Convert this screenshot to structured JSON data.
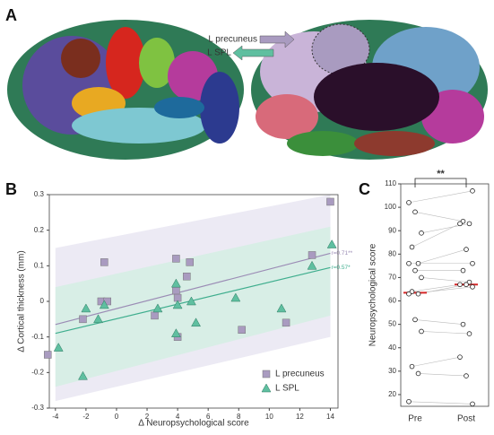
{
  "panel_labels": [
    "A",
    "B",
    "C"
  ],
  "brain_labels": [
    "L precuneus",
    "L SPL"
  ],
  "chart_data": [
    {
      "type": "scatter",
      "xlabel": "Δ Neuropsychological score",
      "ylabel": "Δ Cortical thickness (mm)",
      "xlim": [
        -4.4,
        14.5
      ],
      "ylim": [
        -0.3,
        0.3
      ],
      "xticks": [
        -4,
        -2,
        0,
        2,
        4,
        6,
        8,
        10,
        12,
        14
      ],
      "yticks": [
        -0.3,
        -0.2,
        -0.1,
        0,
        0.1,
        0.2,
        0.3
      ],
      "legend": "bottom-right",
      "series": [
        {
          "name": "L precuneus",
          "color": "#a99bc0",
          "marker": "square",
          "x": [
            -4.5,
            -2.2,
            -1,
            -0.8,
            -0.6,
            2.5,
            3.9,
            3.9,
            4,
            4,
            4.6,
            4.8,
            8.2,
            11.1,
            12.8,
            14
          ],
          "values": [
            -0.15,
            -0.05,
            0,
            0.11,
            0,
            -0.04,
            0.12,
            0.03,
            0.01,
            -0.1,
            0.07,
            0.11,
            -0.08,
            -0.06,
            0.13,
            0.28
          ]
        },
        {
          "name": "L SPL",
          "color": "#5fbfa0",
          "marker": "triangle",
          "x": [
            -3.8,
            -2.2,
            -2,
            -1.2,
            -0.8,
            2.7,
            3.9,
            3.9,
            4,
            4.9,
            5.2,
            7.8,
            10.8,
            12.8,
            14.1
          ],
          "values": [
            -0.13,
            -0.21,
            -0.02,
            -0.05,
            -0.01,
            -0.02,
            0.05,
            -0.09,
            -0.01,
            0,
            -0.06,
            0.01,
            -0.02,
            0.1,
            0.16
          ]
        }
      ],
      "fits": [
        {
          "color": "#9b8cb5",
          "x": [
            -4,
            14
          ],
          "values": [
            -0.065,
            0.135
          ],
          "band_lower": [
            -0.28,
            -0.1
          ],
          "band_upper": [
            0.15,
            0.3
          ],
          "band_color": "#eceaf4",
          "label": "r=0.71**"
        },
        {
          "color": "#3fae8e",
          "x": [
            -4,
            14
          ],
          "values": [
            -0.09,
            0.095
          ],
          "band_lower": [
            -0.24,
            -0.04
          ],
          "band_upper": [
            0.04,
            0.21
          ],
          "band_color": "#d8eee6",
          "label": "r=0.57*"
        }
      ]
    },
    {
      "type": "paired",
      "ylabel": "Neuropsychological score",
      "categories": [
        "Pre",
        "Post"
      ],
      "ylim": [
        15,
        110
      ],
      "yticks": [
        20,
        30,
        40,
        50,
        60,
        70,
        80,
        90,
        100,
        110
      ],
      "values": [
        [
          102,
          98,
          89,
          83,
          76,
          76,
          73,
          70,
          64,
          63,
          63,
          52,
          47,
          32,
          29,
          17
        ],
        [
          107,
          94,
          93,
          93,
          82,
          76,
          73,
          68,
          67,
          67,
          66,
          50,
          46,
          36,
          28,
          16
        ]
      ],
      "means": [
        63.5,
        67
      ],
      "mean_color": "#d62728",
      "significance": "**"
    }
  ]
}
